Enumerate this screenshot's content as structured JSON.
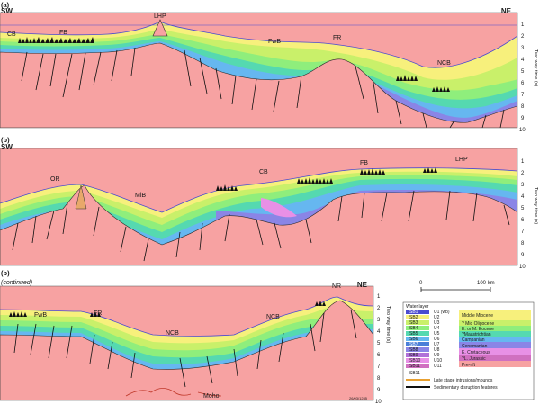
{
  "colors": {
    "basement": "#f7a2a2",
    "u_pink": "#e890e6",
    "u_purple": "#8a85e6",
    "u_blue": "#66b7f0",
    "u_teal": "#55d9b0",
    "u_green": "#8fee7c",
    "u_lime": "#c9f06a",
    "u_yellow": "#f7f07c",
    "outline": "#4b4bd0",
    "fault": "#101010",
    "moho": "#c0392b"
  },
  "panels": [
    {
      "id": "a",
      "label": "(a)",
      "left_dir": "SW",
      "right_dir": "NE",
      "structures": [
        "CB",
        "FB",
        "LHP",
        "FwB",
        "FR",
        "NCB"
      ],
      "axis_title": "Two way time (s)",
      "ticks": [
        "1",
        "2",
        "3",
        "4",
        "5",
        "6",
        "7",
        "8",
        "9",
        "10"
      ]
    },
    {
      "id": "b",
      "label": "(b)",
      "left_dir": "SW",
      "right_dir": "",
      "structures": [
        "OR",
        "MiB",
        "CB",
        "FB",
        "LHP"
      ],
      "axis_title": "Two way time (s)",
      "ticks": [
        "1",
        "2",
        "3",
        "4",
        "5",
        "6",
        "7",
        "8",
        "9",
        "10"
      ]
    },
    {
      "id": "b2",
      "label": "(b)",
      "sublabel": "(continued)",
      "left_dir": "",
      "right_dir": "NE",
      "structures": [
        "FwB",
        "FR",
        "NCB",
        "NCB",
        "NR"
      ],
      "moho": "Moho",
      "axis_title": "Two way time (s)",
      "ticks": [
        "1",
        "2",
        "3",
        "4",
        "5",
        "6",
        "7",
        "8",
        "9",
        "10"
      ]
    }
  ],
  "scale_bar": {
    "start": "0",
    "end": "100 km"
  },
  "legend": {
    "header": "Water layer",
    "units": [
      {
        "unit": "U1 (wb)",
        "horizon": "SB1"
      },
      {
        "unit": "U2",
        "horizon": "SB2"
      },
      {
        "unit": "U3",
        "horizon": "SB3"
      },
      {
        "unit": "U4",
        "horizon": "SB4"
      },
      {
        "unit": "U5",
        "horizon": "SB5"
      },
      {
        "unit": "U6",
        "horizon": "SB6"
      },
      {
        "unit": "U7",
        "horizon": "SB7"
      },
      {
        "unit": "U8",
        "horizon": "SB8"
      },
      {
        "unit": "U9",
        "horizon": "SB9"
      },
      {
        "unit": "U10",
        "horizon": "SB10"
      },
      {
        "unit": "U11",
        "horizon": "SB11"
      }
    ],
    "ages": [
      {
        "label": "Middle Miocene",
        "color": "#f7f07c"
      },
      {
        "label": "? Mid Oligocene",
        "color": "#c9f06a"
      },
      {
        "label": "E. or M. Eocene",
        "color": "#8fee7c"
      },
      {
        "label": "?Maastrichtian",
        "color": "#55d9b0"
      },
      {
        "label": "Campanian",
        "color": "#66b7f0"
      },
      {
        "label": "Cenomanian",
        "color": "#8a85e6"
      },
      {
        "label": "E. Cretaceous",
        "color": "#e890e6"
      },
      {
        "label": "?L. Jurassic",
        "color": "#d070c0"
      },
      {
        "label": "Pre-rift",
        "color": "#f7a2a2"
      }
    ],
    "footer": [
      "Late stage intrusions/mounds",
      "Sedimentary disruption features"
    ],
    "base_label": "SB11"
  },
  "figure_id": "26/03/1285"
}
